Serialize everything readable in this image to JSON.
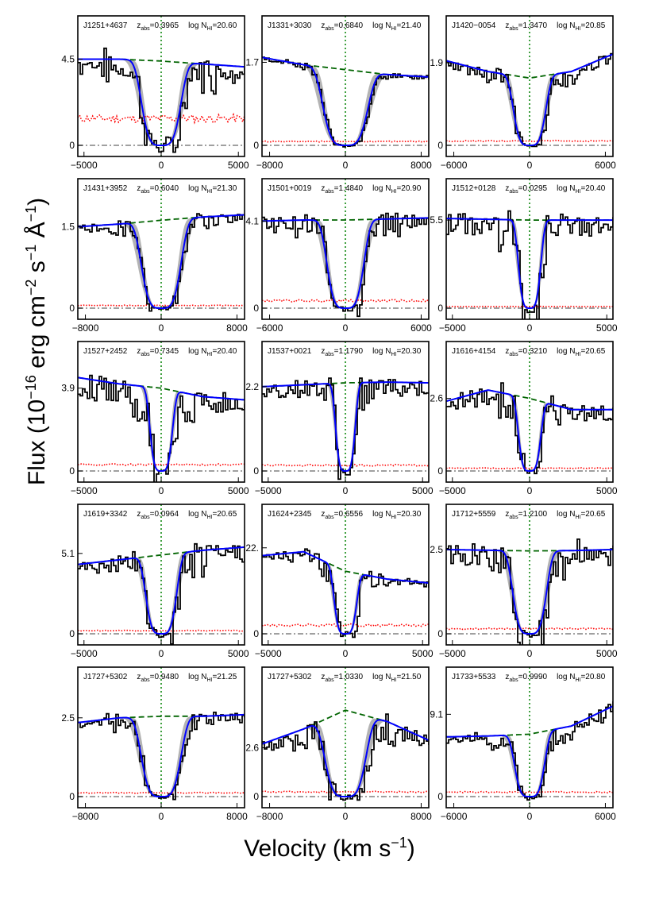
{
  "figure": {
    "ylabel_main": "Flux (10",
    "ylabel_exp1": "−16",
    "ylabel_mid1": " erg cm",
    "ylabel_exp2": "−2",
    "ylabel_mid2": " s",
    "ylabel_exp3": "−1",
    "ylabel_mid3": " Å",
    "ylabel_exp4": "−1",
    "ylabel_end": ")",
    "xlabel_main": "Velocity (km s",
    "xlabel_exp": "−1",
    "xlabel_end": ")"
  },
  "colors": {
    "data": "#000000",
    "model": "#0000ff",
    "band": "#b3b3b3",
    "continuum": "#006400",
    "error": "#ff0000",
    "zero": "#808080",
    "center": "#008000"
  },
  "chart_data": [
    {
      "type": "line",
      "name": "J1251+4637",
      "zabs": "0.3965",
      "logNHI": "20.60",
      "xlim": [
        -5400,
        5400
      ],
      "xticks": [
        -5000,
        0,
        5000
      ],
      "ytick": 4.5,
      "ytick_label": "4.5",
      "ymax": 5.1,
      "cont": [
        4.5,
        4.5,
        4.4,
        4.25,
        4.1
      ],
      "depth": 1.0,
      "width": 1400,
      "offset": 0,
      "err": 1.4,
      "wing": 0.4
    },
    {
      "type": "line",
      "name": "J1331+3030",
      "zabs": "0.6840",
      "logNHI": "21.40",
      "xlim": [
        -8800,
        8800
      ],
      "xticks": [
        -8000,
        0,
        8000
      ],
      "ytick": 1.7,
      "ytick_label": "1.7",
      "ymax": 2.0,
      "cont": [
        1.8,
        1.65,
        1.55,
        1.45,
        1.4
      ],
      "depth": 1.0,
      "width": 2600,
      "offset": 0,
      "err": 0.08,
      "wing": 0.1
    },
    {
      "type": "line",
      "name": "J1420−0054",
      "zabs": "1.3470",
      "logNHI": "20.85",
      "xlim": [
        -6600,
        6600
      ],
      "xticks": [
        -6000,
        0,
        6000
      ],
      "ytick": 1.9,
      "ytick_label": "1.9",
      "ymax": 2.25,
      "cont": [
        1.95,
        1.7,
        1.55,
        1.7,
        2.1
      ],
      "depth": 1.0,
      "width": 1400,
      "offset": 0,
      "err": 0.1,
      "wing": 0.25
    },
    {
      "type": "line",
      "name": "J1431+3952",
      "zabs": "0.6040",
      "logNHI": "21.30",
      "xlim": [
        -8800,
        8800
      ],
      "xticks": [
        -8000,
        0,
        8000
      ],
      "ytick": 1.5,
      "ytick_label": "1.5",
      "ymax": 1.8,
      "cont": [
        1.5,
        1.55,
        1.62,
        1.68,
        1.72
      ],
      "depth": 1.0,
      "width": 2300,
      "offset": 0,
      "err": 0.05,
      "wing": 0.2
    },
    {
      "type": "line",
      "name": "J1501+0019",
      "zabs": "1.4840",
      "logNHI": "20.90",
      "xlim": [
        -6600,
        6600
      ],
      "xticks": [
        -6000,
        0,
        6000
      ],
      "ytick": 4.1,
      "ytick_label": "4.1",
      "ymax": 4.6,
      "cont": [
        4.1,
        4.15,
        4.15,
        4.2,
        4.25
      ],
      "depth": 1.0,
      "width": 1600,
      "offset": 0,
      "err": 0.35,
      "wing": 0.3
    },
    {
      "type": "line",
      "name": "J1512+0128",
      "zabs": "0.0295",
      "logNHI": "20.40",
      "xlim": [
        -5400,
        5400
      ],
      "xticks": [
        -5000,
        0,
        5000
      ],
      "ytick": 5.5,
      "ytick_label": "5.5",
      "ymax": 6.1,
      "cont": [
        5.6,
        5.55,
        5.5,
        5.5,
        5.5
      ],
      "depth": 1.0,
      "width": 800,
      "offset": 0,
      "err": 0.1,
      "wing": 0.5
    },
    {
      "type": "line",
      "name": "J1527+2452",
      "zabs": "0.7345",
      "logNHI": "20.40",
      "xlim": [
        -5400,
        5400
      ],
      "xticks": [
        -5000,
        0,
        5000
      ],
      "ytick": 3.9,
      "ytick_label": "3.9",
      "ymax": 4.6,
      "cont": [
        4.4,
        4.1,
        3.9,
        3.5,
        3.35
      ],
      "depth": 1.0,
      "width": 800,
      "offset": 0,
      "err": 0.3,
      "wing": 0.6
    },
    {
      "type": "line",
      "name": "J1537+0021",
      "zabs": "1.1790",
      "logNHI": "20.30",
      "xlim": [
        -5400,
        5400
      ],
      "xticks": [
        -5000,
        0,
        5000
      ],
      "ytick": 2.2,
      "ytick_label": "2.2",
      "ymax": 2.55,
      "cont": [
        2.2,
        2.25,
        2.3,
        2.32,
        2.3
      ],
      "depth": 1.0,
      "width": 700,
      "offset": 0,
      "err": 0.15,
      "wing": 0.4
    },
    {
      "type": "line",
      "name": "J1616+4154",
      "zabs": "0.3210",
      "logNHI": "20.65",
      "xlim": [
        -5400,
        5400
      ],
      "xticks": [
        -5000,
        0,
        5000
      ],
      "ytick": 2.6,
      "ytick_label": "2.6",
      "ymax": 3.5,
      "cont": [
        2.5,
        2.9,
        2.6,
        2.2,
        2.2
      ],
      "depth": 1.0,
      "width": 800,
      "offset": 0,
      "err": 0.1,
      "wing": 0.5
    },
    {
      "type": "line",
      "name": "J1619+3342",
      "zabs": "0.0964",
      "logNHI": "20.65",
      "xlim": [
        -5400,
        5400
      ],
      "xticks": [
        -5000,
        0,
        5000
      ],
      "ytick": 5.1,
      "ytick_label": "5.1",
      "ymax": 6.2,
      "cont": [
        4.4,
        4.7,
        5.0,
        5.3,
        5.5
      ],
      "depth": 1.0,
      "width": 1100,
      "offset": 0,
      "err": 0.2,
      "wing": 0.45
    },
    {
      "type": "line",
      "name": "J1624+2345",
      "zabs": "0.6556",
      "logNHI": "20.30",
      "xlim": [
        -5400,
        5400
      ],
      "xticks": [
        -5000,
        0,
        5000
      ],
      "ytick": 22,
      "ytick_label": "22.",
      "ymax": 25,
      "cont": [
        20,
        21,
        16,
        14,
        13
      ],
      "depth": 1.0,
      "width": 800,
      "offset": 0,
      "err": 2.2,
      "wing": 0.35
    },
    {
      "type": "line",
      "name": "J1712+5559",
      "zabs": "1.2100",
      "logNHI": "20.65",
      "xlim": [
        -5400,
        5400
      ],
      "xticks": [
        -5000,
        0,
        5000
      ],
      "ytick": 2.5,
      "ytick_label": "2.5",
      "ymax": 2.9,
      "cont": [
        2.5,
        2.48,
        2.46,
        2.47,
        2.5
      ],
      "depth": 1.0,
      "width": 1200,
      "offset": 0,
      "err": 0.15,
      "wing": 0.5
    },
    {
      "type": "line",
      "name": "J1727+5302",
      "zabs": "0.9480",
      "logNHI": "21.25",
      "xlim": [
        -8800,
        8800
      ],
      "xticks": [
        -8000,
        0,
        8000
      ],
      "ytick": 2.5,
      "ytick_label": "2.5",
      "ymax": 3.1,
      "cont": [
        2.35,
        2.5,
        2.55,
        2.55,
        2.6
      ],
      "depth": 1.0,
      "width": 2300,
      "offset": 0,
      "err": 0.12,
      "wing": 0.25
    },
    {
      "type": "line",
      "name": "J1727+5302",
      "zabs": "1.0330",
      "logNHI": "21.50",
      "xlim": [
        -8800,
        8800
      ],
      "xticks": [
        -8000,
        0,
        8000
      ],
      "ytick": 2.6,
      "ytick_label": "2.6",
      "ymax": 5.2,
      "cont": [
        2.8,
        3.6,
        4.6,
        4.0,
        3.0
      ],
      "depth": 1.0,
      "width": 2400,
      "offset": 0,
      "err": 0.25,
      "wing": 0.4
    },
    {
      "type": "line",
      "name": "J1733+5533",
      "zabs": "0.9990",
      "logNHI": "20.80",
      "xlim": [
        -6600,
        6600
      ],
      "xticks": [
        -6000,
        0,
        6000
      ],
      "ytick": 9.1,
      "ytick_label": "9.1",
      "ymax": 10.8,
      "cont": [
        6.6,
        6.7,
        6.9,
        7.8,
        10.0
      ],
      "depth": 1.0,
      "width": 1300,
      "offset": 0,
      "err": 0.5,
      "wing": 0.35
    }
  ]
}
